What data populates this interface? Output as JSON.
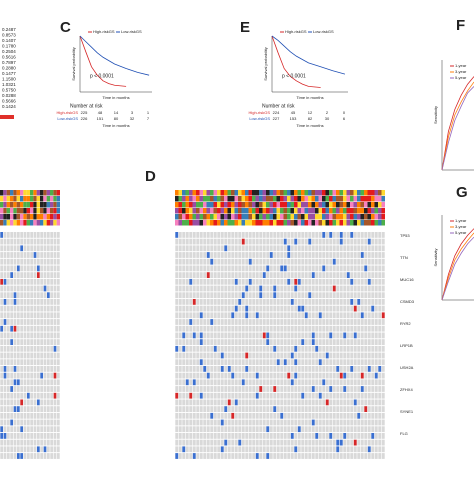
{
  "chart_data": [
    {
      "type": "line",
      "label": "C",
      "xlabel": "Time in months",
      "ylabel": "Survival probability",
      "annotation": "p < 0.0001",
      "x": [
        0,
        10,
        20,
        30,
        40,
        50,
        60,
        80,
        100,
        120
      ],
      "xlim": [
        0,
        125
      ],
      "ylim": [
        0,
        1
      ],
      "series": [
        {
          "name": "High-riskGS",
          "color": "#d62728",
          "values": [
            1,
            0.72,
            0.45,
            0.3,
            0.2,
            0.15,
            0.12,
            0.1,
            null,
            null
          ]
        },
        {
          "name": "Low-riskGS",
          "color": "#1f4fb4",
          "values": [
            1,
            0.9,
            0.8,
            0.7,
            0.62,
            0.56,
            0.5,
            0.42,
            0.35,
            0.3
          ]
        }
      ],
      "risk_table": {
        "title": "Number at risk",
        "rows": [
          {
            "name": "High-riskGS",
            "values": [
              225,
              48,
              14,
              3,
              1
            ]
          },
          {
            "name": "Low-riskGS",
            "values": [
              226,
              151,
              80,
              32,
              7
            ]
          }
        ]
      }
    },
    {
      "type": "line",
      "label": "E",
      "xlabel": "Time in months",
      "ylabel": "Survival probability",
      "annotation": "p < 0.0001",
      "x": [
        0,
        10,
        20,
        30,
        40,
        50,
        60,
        80,
        100,
        120
      ],
      "xlim": [
        0,
        125
      ],
      "ylim": [
        0,
        1
      ],
      "series": [
        {
          "name": "High-riskGS",
          "color": "#d62728",
          "values": [
            1,
            0.7,
            0.42,
            0.28,
            0.2,
            0.14,
            0.1,
            0.08,
            null,
            null
          ]
        },
        {
          "name": "Low-riskGS",
          "color": "#1f4fb4",
          "values": [
            1,
            0.92,
            0.82,
            0.72,
            0.64,
            0.58,
            0.52,
            0.45,
            0.38,
            0.32
          ]
        }
      ],
      "risk_table": {
        "title": "Number at risk",
        "rows": [
          {
            "name": "High-riskGS",
            "values": [
              224,
              45,
              12,
              2,
              0
            ]
          },
          {
            "name": "Low-riskGS",
            "values": [
              227,
              153,
              82,
              30,
              6
            ]
          }
        ]
      }
    },
    {
      "type": "line",
      "label": "F",
      "ylabel": "Sensitivity",
      "x": [
        0,
        0.1,
        0.2,
        0.3,
        0.4,
        0.5
      ],
      "xlim": [
        0,
        0.5
      ],
      "ylim": [
        0,
        1
      ],
      "series": [
        {
          "name": "1-year",
          "color": "#d62728",
          "values": [
            0,
            0.35,
            0.55,
            0.68,
            0.78,
            0.85
          ]
        },
        {
          "name": "3-year",
          "color": "#ff7f0e",
          "values": [
            0,
            0.3,
            0.5,
            0.62,
            0.72,
            0.8
          ]
        },
        {
          "name": "5-year",
          "color": "#9467bd",
          "values": [
            0,
            0.25,
            0.45,
            0.58,
            0.7,
            0.76
          ]
        }
      ]
    },
    {
      "type": "line",
      "label": "G",
      "ylabel": "Sensitivity",
      "x": [
        0,
        0.1,
        0.2,
        0.3,
        0.4,
        0.5
      ],
      "xlim": [
        0,
        0.5
      ],
      "ylim": [
        0,
        1
      ],
      "series": [
        {
          "name": "1-year",
          "color": "#d62728",
          "values": [
            0,
            0.3,
            0.52,
            0.66,
            0.76,
            0.84
          ]
        },
        {
          "name": "3-year",
          "color": "#ff7f0e",
          "values": [
            0,
            0.26,
            0.47,
            0.6,
            0.7,
            0.79
          ]
        },
        {
          "name": "5-year",
          "color": "#9467bd",
          "values": [
            0,
            0.22,
            0.42,
            0.55,
            0.66,
            0.74
          ]
        }
      ]
    }
  ],
  "left_values": [
    "0.2487",
    "0.8573",
    "0.1407",
    "0.1780",
    "0.2504",
    "0.5616",
    "0.7897",
    "0.2880",
    "0.1477",
    "1.1500",
    "1.0321",
    "0.5750",
    "0.0288",
    "0.5666",
    "0.1424"
  ],
  "oncoprint": {
    "label": "D",
    "genes": [
      "TP53",
      "TTN",
      "MUC16",
      "CSMD3",
      "RYR2",
      "LRP1B",
      "USH2A",
      "ZFHX4",
      "SYNE1",
      "FLG"
    ]
  }
}
